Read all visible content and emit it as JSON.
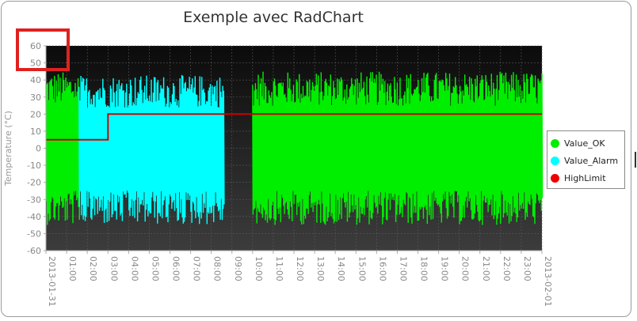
{
  "chart_data": {
    "type": "line",
    "title": "Exemple avec RadChart",
    "ylabel": "Temperature (°C)",
    "xlabel": "",
    "ylim": [
      -60,
      60
    ],
    "yticks": [
      60,
      50,
      40,
      30,
      20,
      10,
      0,
      -10,
      -20,
      -30,
      -40,
      -50,
      -60
    ],
    "xticks": [
      "2013-01-31",
      "01:00",
      "02:00",
      "03:00",
      "04:00",
      "05:00",
      "06:00",
      "07:00",
      "08:00",
      "09:00",
      "10:00",
      "11:00",
      "12:00",
      "13:00",
      "14:00",
      "15:00",
      "16:00",
      "17:00",
      "18:00",
      "19:00",
      "20:00",
      "21:00",
      "22:00",
      "23:00",
      "2013-02-01"
    ],
    "grid": true,
    "legend_position": "right",
    "series": [
      {
        "name": "Value_OK",
        "color": "#00ee00",
        "segments": [
          {
            "start_hour": 0.0,
            "end_hour": 1.6,
            "min": -45,
            "max": 45
          },
          {
            "start_hour": 10.0,
            "end_hour": 24.0,
            "min": -45,
            "max": 45
          }
        ]
      },
      {
        "name": "Value_Alarm",
        "color": "#00ffff",
        "segments": [
          {
            "start_hour": 1.6,
            "end_hour": 8.6,
            "min": -45,
            "max": 43
          }
        ]
      },
      {
        "name": "HighLimit",
        "color": "#cc0000",
        "points": [
          {
            "hour": 0.0,
            "value": 5
          },
          {
            "hour": 3.0,
            "value": 5
          },
          {
            "hour": 3.0,
            "value": 20
          },
          {
            "hour": 24.0,
            "value": 20
          }
        ]
      }
    ]
  }
}
